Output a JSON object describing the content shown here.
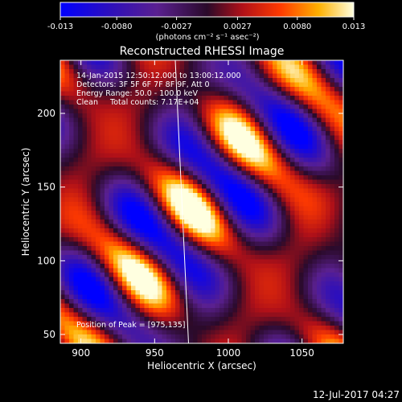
{
  "chart_data": {
    "type": "heatmap",
    "colorbar": {
      "ticks": [
        "-0.013",
        "-0.0080",
        "-0.0027",
        "0.0027",
        "0.0080",
        "0.013"
      ],
      "units": "(photons cm⁻² s⁻¹ asec⁻²)",
      "range": [
        -0.013,
        0.013
      ]
    },
    "title": "Reconstructed RHESSI Image",
    "xlabel": "Heliocentric X (arcsec)",
    "ylabel": "Heliocentric Y (arcsec)",
    "xlim": [
      886,
      1078
    ],
    "ylim": [
      44,
      236
    ],
    "xticks": [
      900,
      950,
      1000,
      1050
    ],
    "yticks": [
      50,
      100,
      150,
      200
    ],
    "annotations": [
      "14-Jan-2015 12:50:12.000 to 13:00:12.000",
      "Detectors: 3F 5F 6F 7F 8F 9F, Att 0",
      "Energy Range: 50.0 - 100.0 keV",
      "Clean     Total counts: 7.17E+04"
    ],
    "peak_label": "Position of Peak = [975,135]",
    "peak": [
      975,
      135
    ],
    "limb_line": [
      [
        964,
        236
      ],
      [
        973,
        44
      ]
    ],
    "colormap": "blue-purple-red-yellow-white"
  },
  "timestamp": "12-Jul-2017 04:27"
}
